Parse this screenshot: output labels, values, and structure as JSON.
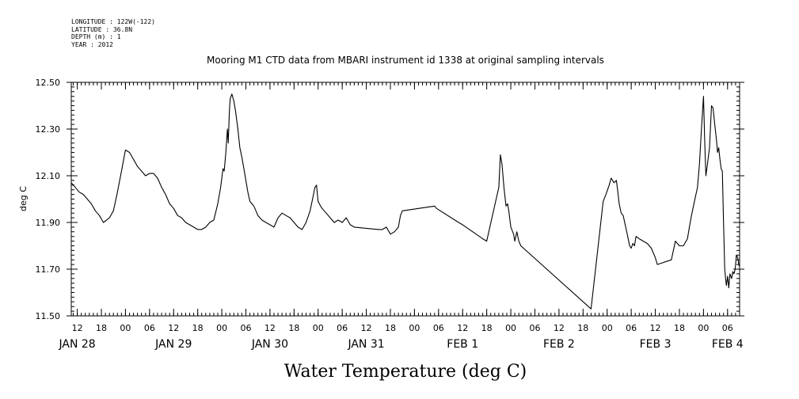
{
  "header": {
    "lines": [
      "LONGITUDE : 122W(-122)",
      "LATITUDE : 36.8N",
      "DEPTH (m) : 1",
      "YEAR : 2012"
    ]
  },
  "chart_data": {
    "type": "line",
    "title": "Mooring M1 CTD data from MBARI instrument id 1338 at original sampling intervals",
    "xlabel": "Water Temperature (deg C)",
    "ylabel": "deg C",
    "ylim": [
      11.5,
      12.5
    ],
    "yticks": [
      11.5,
      11.7,
      11.9,
      12.1,
      12.3,
      12.5
    ],
    "ytick_labels": [
      "11.50",
      "11.70",
      "11.90",
      "12.10",
      "12.30",
      "12.50"
    ],
    "x_unit": "hours since JAN 28 00:00",
    "xlim": [
      10.5,
      177
    ],
    "hour_ticks": [
      {
        "t": 12,
        "label": "12"
      },
      {
        "t": 18,
        "label": "18"
      },
      {
        "t": 24,
        "label": "00"
      },
      {
        "t": 30,
        "label": "06"
      },
      {
        "t": 36,
        "label": "12"
      },
      {
        "t": 42,
        "label": "18"
      },
      {
        "t": 48,
        "label": "00"
      },
      {
        "t": 54,
        "label": "06"
      },
      {
        "t": 60,
        "label": "12"
      },
      {
        "t": 66,
        "label": "18"
      },
      {
        "t": 72,
        "label": "00"
      },
      {
        "t": 78,
        "label": "06"
      },
      {
        "t": 84,
        "label": "12"
      },
      {
        "t": 90,
        "label": "18"
      },
      {
        "t": 96,
        "label": "00"
      },
      {
        "t": 102,
        "label": "06"
      },
      {
        "t": 108,
        "label": "12"
      },
      {
        "t": 114,
        "label": "18"
      },
      {
        "t": 120,
        "label": "00"
      },
      {
        "t": 126,
        "label": "06"
      },
      {
        "t": 132,
        "label": "12"
      },
      {
        "t": 138,
        "label": "18"
      },
      {
        "t": 144,
        "label": "00"
      },
      {
        "t": 150,
        "label": "06"
      },
      {
        "t": 156,
        "label": "12"
      },
      {
        "t": 162,
        "label": "18"
      },
      {
        "t": 168,
        "label": "00"
      },
      {
        "t": 174,
        "label": "06"
      }
    ],
    "day_labels": [
      {
        "t": 12,
        "label": "JAN 28"
      },
      {
        "t": 36,
        "label": "JAN 29"
      },
      {
        "t": 60,
        "label": "JAN 30"
      },
      {
        "t": 84,
        "label": "JAN 31"
      },
      {
        "t": 108,
        "label": "FEB  1"
      },
      {
        "t": 132,
        "label": "FEB  2"
      },
      {
        "t": 156,
        "label": "FEB  3"
      },
      {
        "t": 174,
        "label": "FEB  4"
      }
    ],
    "series": [
      {
        "name": "Water Temperature",
        "points": [
          [
            10.5,
            12.07
          ],
          [
            11.5,
            12.05
          ],
          [
            12.5,
            12.03
          ],
          [
            13.5,
            12.02
          ],
          [
            14.5,
            12.0
          ],
          [
            15.5,
            11.98
          ],
          [
            16.5,
            11.95
          ],
          [
            17.5,
            11.93
          ],
          [
            18.5,
            11.9
          ],
          [
            19.3,
            11.91
          ],
          [
            20.0,
            11.92
          ],
          [
            21.0,
            11.95
          ],
          [
            22.0,
            12.03
          ],
          [
            23.0,
            12.12
          ],
          [
            24.0,
            12.21
          ],
          [
            25.0,
            12.2
          ],
          [
            26.0,
            12.17
          ],
          [
            27.0,
            12.14
          ],
          [
            28.0,
            12.12
          ],
          [
            29.0,
            12.1
          ],
          [
            30.0,
            12.11
          ],
          [
            31.0,
            12.11
          ],
          [
            32.0,
            12.09
          ],
          [
            33.0,
            12.05
          ],
          [
            34.0,
            12.02
          ],
          [
            35.0,
            11.98
          ],
          [
            36.0,
            11.96
          ],
          [
            37.0,
            11.93
          ],
          [
            38.0,
            11.92
          ],
          [
            39.0,
            11.9
          ],
          [
            40.0,
            11.89
          ],
          [
            41.0,
            11.88
          ],
          [
            42.0,
            11.87
          ],
          [
            43.0,
            11.87
          ],
          [
            44.0,
            11.88
          ],
          [
            45.0,
            11.9
          ],
          [
            46.0,
            11.91
          ],
          [
            47.0,
            11.98
          ],
          [
            47.7,
            12.05
          ],
          [
            48.3,
            12.13
          ],
          [
            48.6,
            12.12
          ],
          [
            49.0,
            12.2
          ],
          [
            49.4,
            12.3
          ],
          [
            49.6,
            12.24
          ],
          [
            49.9,
            12.38
          ],
          [
            50.1,
            12.43
          ],
          [
            50.5,
            12.45
          ],
          [
            51.0,
            12.42
          ],
          [
            51.4,
            12.38
          ],
          [
            52.0,
            12.3
          ],
          [
            52.5,
            12.22
          ],
          [
            53.0,
            12.18
          ],
          [
            53.5,
            12.13
          ],
          [
            54.0,
            12.08
          ],
          [
            54.5,
            12.03
          ],
          [
            55.0,
            11.99
          ],
          [
            55.5,
            11.98
          ],
          [
            56.0,
            11.97
          ],
          [
            56.5,
            11.95
          ],
          [
            57.0,
            11.93
          ],
          [
            58.0,
            11.91
          ],
          [
            59.0,
            11.9
          ],
          [
            60.0,
            11.89
          ],
          [
            61.0,
            11.88
          ],
          [
            61.5,
            11.9
          ],
          [
            62.0,
            11.92
          ],
          [
            63.0,
            11.94
          ],
          [
            64.0,
            11.93
          ],
          [
            65.0,
            11.92
          ],
          [
            66.0,
            11.9
          ],
          [
            67.0,
            11.88
          ],
          [
            68.0,
            11.87
          ],
          [
            69.0,
            11.9
          ],
          [
            70.0,
            11.95
          ],
          [
            70.6,
            12.0
          ],
          [
            71.2,
            12.05
          ],
          [
            71.6,
            12.06
          ],
          [
            72.0,
            11.99
          ],
          [
            72.6,
            11.97
          ],
          [
            73.0,
            11.96
          ],
          [
            74.0,
            11.94
          ],
          [
            75.0,
            11.92
          ],
          [
            76.0,
            11.9
          ],
          [
            77.0,
            11.91
          ],
          [
            78.0,
            11.9
          ],
          [
            79.0,
            11.92
          ],
          [
            80.0,
            11.89
          ],
          [
            81.0,
            11.88
          ],
          [
            84.0,
            11.875
          ],
          [
            87.0,
            11.87
          ],
          [
            88.0,
            11.87
          ],
          [
            89.0,
            11.88
          ],
          [
            90.0,
            11.85
          ],
          [
            91.0,
            11.86
          ],
          [
            92.0,
            11.88
          ],
          [
            92.5,
            11.93
          ],
          [
            93.0,
            11.95
          ],
          [
            97.0,
            11.96
          ],
          [
            101.0,
            11.97
          ],
          [
            101.5,
            11.96
          ],
          [
            107.0,
            11.9
          ],
          [
            108.0,
            11.89
          ],
          [
            113.0,
            11.83
          ],
          [
            114.0,
            11.82
          ],
          [
            117.0,
            12.05
          ],
          [
            117.4,
            12.19
          ],
          [
            117.8,
            12.15
          ],
          [
            118.3,
            12.05
          ],
          [
            118.8,
            11.97
          ],
          [
            119.2,
            11.98
          ],
          [
            119.5,
            11.95
          ],
          [
            120.0,
            11.88
          ],
          [
            120.7,
            11.85
          ],
          [
            121.0,
            11.82
          ],
          [
            121.5,
            11.86
          ],
          [
            122.0,
            11.82
          ],
          [
            122.5,
            11.8
          ],
          [
            140.0,
            11.53
          ],
          [
            143.0,
            11.99
          ],
          [
            143.7,
            12.02
          ],
          [
            144.5,
            12.06
          ],
          [
            145.0,
            12.09
          ],
          [
            145.7,
            12.07
          ],
          [
            146.3,
            12.08
          ],
          [
            146.6,
            12.04
          ],
          [
            147.0,
            11.98
          ],
          [
            147.5,
            11.94
          ],
          [
            148.0,
            11.93
          ],
          [
            148.5,
            11.89
          ],
          [
            149.0,
            11.85
          ],
          [
            149.6,
            11.8
          ],
          [
            150.0,
            11.79
          ],
          [
            150.4,
            11.81
          ],
          [
            150.8,
            11.8
          ],
          [
            151.2,
            11.84
          ],
          [
            152.0,
            11.83
          ],
          [
            153.0,
            11.82
          ],
          [
            154.0,
            11.81
          ],
          [
            155.0,
            11.79
          ],
          [
            156.0,
            11.75
          ],
          [
            156.5,
            11.72
          ],
          [
            160.0,
            11.74
          ],
          [
            161.0,
            11.82
          ],
          [
            162.0,
            11.8
          ],
          [
            163.0,
            11.8
          ],
          [
            164.0,
            11.83
          ],
          [
            164.5,
            11.88
          ],
          [
            165.0,
            11.93
          ],
          [
            166.0,
            12.01
          ],
          [
            166.5,
            12.05
          ],
          [
            167.0,
            12.15
          ],
          [
            167.5,
            12.3
          ],
          [
            168.0,
            12.44
          ],
          [
            168.3,
            12.25
          ],
          [
            168.6,
            12.1
          ],
          [
            169.0,
            12.15
          ],
          [
            169.5,
            12.22
          ],
          [
            170.0,
            12.4
          ],
          [
            170.4,
            12.39
          ],
          [
            170.8,
            12.32
          ],
          [
            171.2,
            12.26
          ],
          [
            171.5,
            12.2
          ],
          [
            171.8,
            12.22
          ],
          [
            172.1,
            12.17
          ],
          [
            172.4,
            12.13
          ],
          [
            172.7,
            12.12
          ],
          [
            173.0,
            11.9
          ],
          [
            173.3,
            11.7
          ],
          [
            173.5,
            11.66
          ],
          [
            173.7,
            11.63
          ],
          [
            174.0,
            11.67
          ],
          [
            174.3,
            11.62
          ],
          [
            174.6,
            11.68
          ],
          [
            175.0,
            11.66
          ],
          [
            175.3,
            11.69
          ],
          [
            175.6,
            11.68
          ],
          [
            175.9,
            11.7
          ],
          [
            176.2,
            11.76
          ],
          [
            176.5,
            11.75
          ],
          [
            176.8,
            11.72
          ],
          [
            177.0,
            11.71
          ]
        ]
      }
    ]
  }
}
